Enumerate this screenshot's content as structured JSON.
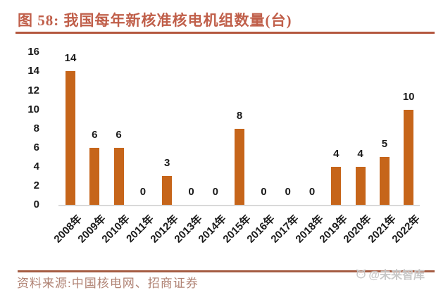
{
  "figure": {
    "title": "图 58:  我国每年新核准核电机组数量(台)",
    "source": "资料来源:中国核电网、招商证券",
    "watermark": "@未来智库"
  },
  "colors": {
    "bar": "#C6651A",
    "title": "#C05F4A",
    "title_underline": "#B4573F",
    "source_line": "#A55C42",
    "source_text": "#B08273",
    "axis_baseline": "#D9D9D9",
    "labels": "#1a1a1a",
    "watermark": "#C6C6C6"
  },
  "chart_data": {
    "type": "bar",
    "title": "我国每年新核准核电机组数量(台)",
    "categories": [
      "2008年",
      "2009年",
      "2010年",
      "2011年",
      "2012年",
      "2013年",
      "2014年",
      "2015年",
      "2016年",
      "2017年",
      "2018年",
      "2019年",
      "2020年",
      "2021年",
      "2022年"
    ],
    "values": [
      14,
      6,
      6,
      0,
      3,
      0,
      0,
      8,
      0,
      0,
      0,
      4,
      4,
      5,
      10
    ],
    "xlabel": "",
    "ylabel": "",
    "ylim": [
      0,
      16
    ],
    "yticks": [
      0,
      2,
      4,
      6,
      8,
      10,
      12,
      14,
      16
    ],
    "grid": false,
    "legend": false,
    "value_labels": true,
    "bar_color": "#C6651A"
  }
}
